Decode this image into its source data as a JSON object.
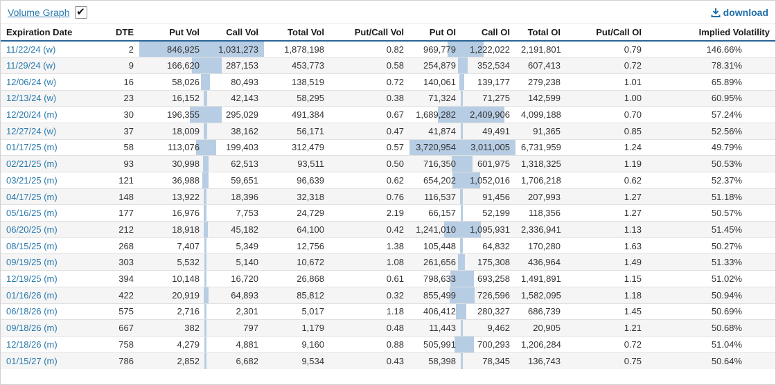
{
  "toolbar": {
    "volume_graph_label": "Volume Graph",
    "checkbox_checked": true,
    "checkbox_glyph": "✔",
    "download_label": "download",
    "download_icon": "download-tray-arrow-icon"
  },
  "colors": {
    "bar_fill": "#b7cde4",
    "header_underline": "#2a6496",
    "link_blue": "#2a7aad",
    "download_blue": "#1e6fa8",
    "row_stripe": "#f5f5f5"
  },
  "table": {
    "columns": [
      {
        "key": "expiration",
        "label": "Expiration Date",
        "align": "left",
        "type": "link"
      },
      {
        "key": "dte",
        "label": "DTE",
        "align": "right"
      },
      {
        "key": "put_vol",
        "label": "Put Vol",
        "align": "right",
        "bar": "right",
        "max": 846925
      },
      {
        "key": "call_vol",
        "label": "Call Vol",
        "align": "right",
        "bar": "left",
        "max": 1031273
      },
      {
        "key": "total_vol",
        "label": "Total Vol",
        "align": "right"
      },
      {
        "key": "pc_vol",
        "label": "Put/Call Vol",
        "align": "right"
      },
      {
        "key": "put_oi",
        "label": "Put OI",
        "align": "right",
        "bar": "right",
        "max": 3720954
      },
      {
        "key": "call_oi",
        "label": "Call OI",
        "align": "right",
        "bar": "left",
        "max": 3011005
      },
      {
        "key": "total_oi",
        "label": "Total OI",
        "align": "right"
      },
      {
        "key": "pc_oi",
        "label": "Put/Call OI",
        "align": "right"
      },
      {
        "key": "iv",
        "label": "Implied Volatility",
        "align": "right",
        "extra_pad": true
      }
    ],
    "rows": [
      {
        "expiration": "11/22/24 (w)",
        "dte": "2",
        "put_vol": "846,925",
        "call_vol": "1,031,273",
        "total_vol": "1,878,198",
        "pc_vol": "0.82",
        "put_oi": "969,779",
        "call_oi": "1,222,022",
        "total_oi": "2,191,801",
        "pc_oi": "0.79",
        "iv": "146.66%"
      },
      {
        "expiration": "11/29/24 (w)",
        "dte": "9",
        "put_vol": "166,620",
        "call_vol": "287,153",
        "total_vol": "453,773",
        "pc_vol": "0.58",
        "put_oi": "254,879",
        "call_oi": "352,534",
        "total_oi": "607,413",
        "pc_oi": "0.72",
        "iv": "78.31%"
      },
      {
        "expiration": "12/06/24 (w)",
        "dte": "16",
        "put_vol": "58,026",
        "call_vol": "80,493",
        "total_vol": "138,519",
        "pc_vol": "0.72",
        "put_oi": "140,061",
        "call_oi": "139,177",
        "total_oi": "279,238",
        "pc_oi": "1.01",
        "iv": "65.89%"
      },
      {
        "expiration": "12/13/24 (w)",
        "dte": "23",
        "put_vol": "16,152",
        "call_vol": "42,143",
        "total_vol": "58,295",
        "pc_vol": "0.38",
        "put_oi": "71,324",
        "call_oi": "71,275",
        "total_oi": "142,599",
        "pc_oi": "1.00",
        "iv": "60.95%"
      },
      {
        "expiration": "12/20/24 (m)",
        "dte": "30",
        "put_vol": "196,355",
        "call_vol": "295,029",
        "total_vol": "491,384",
        "pc_vol": "0.67",
        "put_oi": "1,689,282",
        "call_oi": "2,409,906",
        "total_oi": "4,099,188",
        "pc_oi": "0.70",
        "iv": "57.24%"
      },
      {
        "expiration": "12/27/24 (w)",
        "dte": "37",
        "put_vol": "18,009",
        "call_vol": "38,162",
        "total_vol": "56,171",
        "pc_vol": "0.47",
        "put_oi": "41,874",
        "call_oi": "49,491",
        "total_oi": "91,365",
        "pc_oi": "0.85",
        "iv": "52.56%"
      },
      {
        "expiration": "01/17/25 (m)",
        "dte": "58",
        "put_vol": "113,076",
        "call_vol": "199,403",
        "total_vol": "312,479",
        "pc_vol": "0.57",
        "put_oi": "3,720,954",
        "call_oi": "3,011,005",
        "total_oi": "6,731,959",
        "pc_oi": "1.24",
        "iv": "49.79%"
      },
      {
        "expiration": "02/21/25 (m)",
        "dte": "93",
        "put_vol": "30,998",
        "call_vol": "62,513",
        "total_vol": "93,511",
        "pc_vol": "0.50",
        "put_oi": "716,350",
        "call_oi": "601,975",
        "total_oi": "1,318,325",
        "pc_oi": "1.19",
        "iv": "50.53%"
      },
      {
        "expiration": "03/21/25 (m)",
        "dte": "121",
        "put_vol": "36,988",
        "call_vol": "59,651",
        "total_vol": "96,639",
        "pc_vol": "0.62",
        "put_oi": "654,202",
        "call_oi": "1,052,016",
        "total_oi": "1,706,218",
        "pc_oi": "0.62",
        "iv": "52.37%"
      },
      {
        "expiration": "04/17/25 (m)",
        "dte": "148",
        "put_vol": "13,922",
        "call_vol": "18,396",
        "total_vol": "32,318",
        "pc_vol": "0.76",
        "put_oi": "116,537",
        "call_oi": "91,456",
        "total_oi": "207,993",
        "pc_oi": "1.27",
        "iv": "51.18%"
      },
      {
        "expiration": "05/16/25 (m)",
        "dte": "177",
        "put_vol": "16,976",
        "call_vol": "7,753",
        "total_vol": "24,729",
        "pc_vol": "2.19",
        "put_oi": "66,157",
        "call_oi": "52,199",
        "total_oi": "118,356",
        "pc_oi": "1.27",
        "iv": "50.57%"
      },
      {
        "expiration": "06/20/25 (m)",
        "dte": "212",
        "put_vol": "18,918",
        "call_vol": "45,182",
        "total_vol": "64,100",
        "pc_vol": "0.42",
        "put_oi": "1,241,010",
        "call_oi": "1,095,931",
        "total_oi": "2,336,941",
        "pc_oi": "1.13",
        "iv": "51.45%"
      },
      {
        "expiration": "08/15/25 (m)",
        "dte": "268",
        "put_vol": "7,407",
        "call_vol": "5,349",
        "total_vol": "12,756",
        "pc_vol": "1.38",
        "put_oi": "105,448",
        "call_oi": "64,832",
        "total_oi": "170,280",
        "pc_oi": "1.63",
        "iv": "50.27%"
      },
      {
        "expiration": "09/19/25 (m)",
        "dte": "303",
        "put_vol": "5,532",
        "call_vol": "5,140",
        "total_vol": "10,672",
        "pc_vol": "1.08",
        "put_oi": "261,656",
        "call_oi": "175,308",
        "total_oi": "436,964",
        "pc_oi": "1.49",
        "iv": "51.33%"
      },
      {
        "expiration": "12/19/25 (m)",
        "dte": "394",
        "put_vol": "10,148",
        "call_vol": "16,720",
        "total_vol": "26,868",
        "pc_vol": "0.61",
        "put_oi": "798,633",
        "call_oi": "693,258",
        "total_oi": "1,491,891",
        "pc_oi": "1.15",
        "iv": "51.02%"
      },
      {
        "expiration": "01/16/26 (m)",
        "dte": "422",
        "put_vol": "20,919",
        "call_vol": "64,893",
        "total_vol": "85,812",
        "pc_vol": "0.32",
        "put_oi": "855,499",
        "call_oi": "726,596",
        "total_oi": "1,582,095",
        "pc_oi": "1.18",
        "iv": "50.94%"
      },
      {
        "expiration": "06/18/26 (m)",
        "dte": "575",
        "put_vol": "2,716",
        "call_vol": "2,301",
        "total_vol": "5,017",
        "pc_vol": "1.18",
        "put_oi": "406,412",
        "call_oi": "280,327",
        "total_oi": "686,739",
        "pc_oi": "1.45",
        "iv": "50.69%"
      },
      {
        "expiration": "09/18/26 (m)",
        "dte": "667",
        "put_vol": "382",
        "call_vol": "797",
        "total_vol": "1,179",
        "pc_vol": "0.48",
        "put_oi": "11,443",
        "call_oi": "9,462",
        "total_oi": "20,905",
        "pc_oi": "1.21",
        "iv": "50.68%"
      },
      {
        "expiration": "12/18/26 (m)",
        "dte": "758",
        "put_vol": "4,279",
        "call_vol": "4,881",
        "total_vol": "9,160",
        "pc_vol": "0.88",
        "put_oi": "505,991",
        "call_oi": "700,293",
        "total_oi": "1,206,284",
        "pc_oi": "0.72",
        "iv": "51.04%"
      },
      {
        "expiration": "01/15/27 (m)",
        "dte": "786",
        "put_vol": "2,852",
        "call_vol": "6,682",
        "total_vol": "9,534",
        "pc_vol": "0.43",
        "put_oi": "58,398",
        "call_oi": "78,345",
        "total_oi": "136,743",
        "pc_oi": "0.75",
        "iv": "50.64%"
      }
    ]
  }
}
